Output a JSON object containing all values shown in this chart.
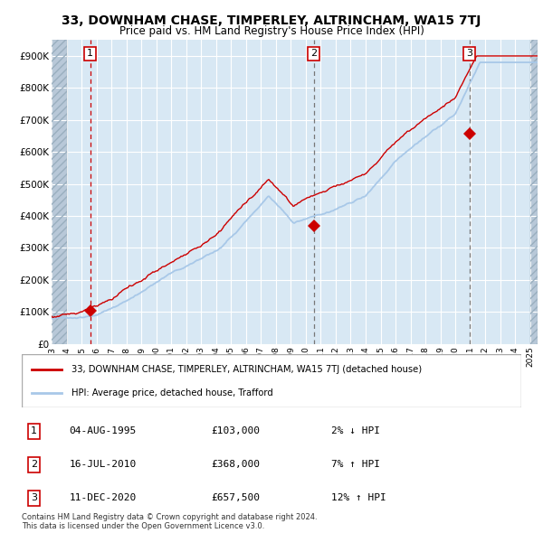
{
  "title": "33, DOWNHAM CHASE, TIMPERLEY, ALTRINCHAM, WA15 7TJ",
  "subtitle": "Price paid vs. HM Land Registry's House Price Index (HPI)",
  "ylim": [
    0,
    950000
  ],
  "yticks": [
    0,
    100000,
    200000,
    300000,
    400000,
    500000,
    600000,
    700000,
    800000,
    900000
  ],
  "ytick_labels": [
    "£0",
    "£100K",
    "£200K",
    "£300K",
    "£400K",
    "£500K",
    "£600K",
    "£700K",
    "£800K",
    "£900K"
  ],
  "xlim_start": 1993.0,
  "xlim_end": 2025.5,
  "hatch_left_end": 1994.0,
  "hatch_right_start": 2025.0,
  "sale_points": [
    {
      "year": 1995.58,
      "price": 103000,
      "label": "1"
    },
    {
      "year": 2010.54,
      "price": 368000,
      "label": "2"
    },
    {
      "year": 2020.94,
      "price": 657500,
      "label": "3"
    }
  ],
  "sale_dates": [
    "04-AUG-1995",
    "16-JUL-2010",
    "11-DEC-2020"
  ],
  "sale_prices": [
    "£103,000",
    "£368,000",
    "£657,500"
  ],
  "sale_hpi": [
    "2% ↓ HPI",
    "7% ↑ HPI",
    "12% ↑ HPI"
  ],
  "line_color_red": "#cc0000",
  "line_color_blue": "#a8c8e8",
  "dot_color": "#cc0000",
  "vline_color_red": "#cc0000",
  "vline_color_gray": "#777777",
  "background_color": "#d8e8f4",
  "hatch_color": "#b8c8d8",
  "grid_color": "#ffffff",
  "legend_label_red": "33, DOWNHAM CHASE, TIMPERLEY, ALTRINCHAM, WA15 7TJ (detached house)",
  "legend_label_blue": "HPI: Average price, detached house, Trafford",
  "footer": "Contains HM Land Registry data © Crown copyright and database right 2024.\nThis data is licensed under the Open Government Licence v3.0."
}
